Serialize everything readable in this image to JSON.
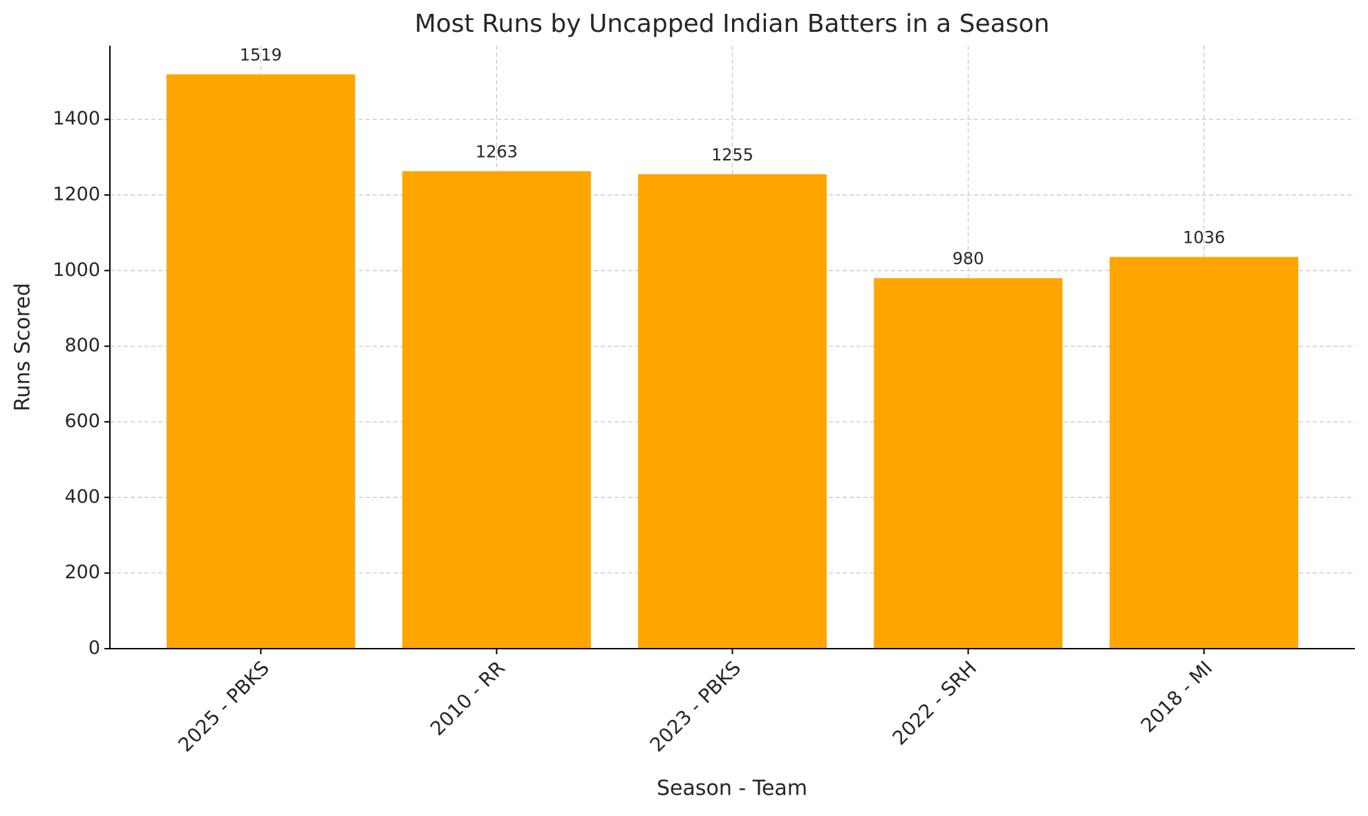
{
  "chart_data": {
    "type": "bar",
    "title": "Most Runs by Uncapped Indian Batters in a Season",
    "x_label": "Season - Team",
    "y_label": "Runs Scored",
    "categories": [
      "2025 - PBKS",
      "2010 - RR",
      "2023 - PBKS",
      "2022 - SRH",
      "2018 - MI"
    ],
    "values": [
      1519,
      1263,
      1255,
      980,
      1036
    ],
    "color": "#ffa500",
    "ylim": [
      0,
      1595
    ],
    "yticks": [
      0,
      200,
      400,
      600,
      800,
      1000,
      1200,
      1400
    ],
    "grid": true
  }
}
